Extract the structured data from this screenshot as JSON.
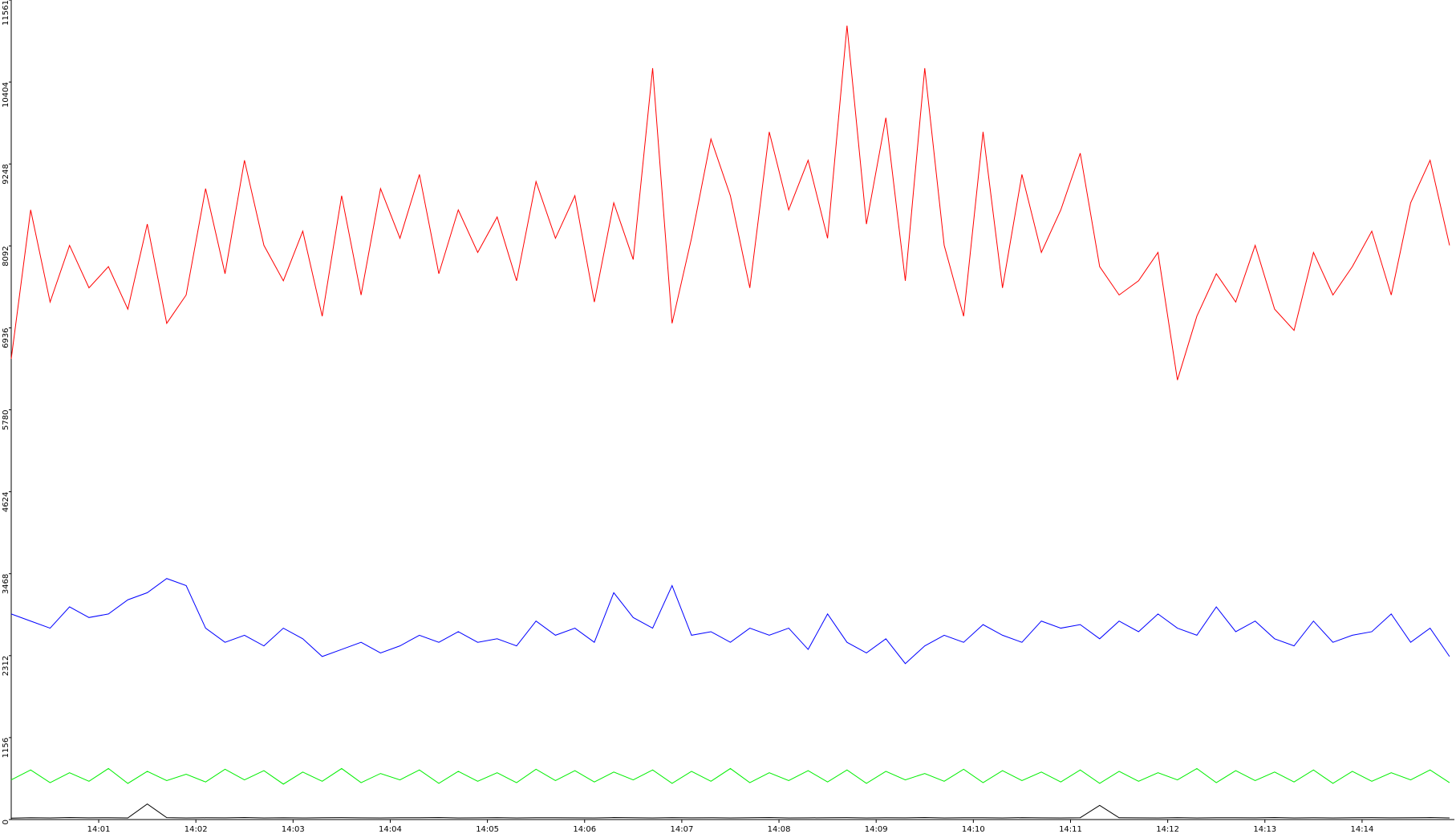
{
  "chart_data": {
    "type": "line",
    "x": [
      0.1,
      0.3,
      0.5,
      0.7,
      0.9,
      1.1,
      1.3,
      1.5,
      1.7,
      1.9,
      2.1,
      2.3,
      2.5,
      2.7,
      2.9,
      3.1,
      3.3,
      3.5,
      3.7,
      3.9,
      4.1,
      4.3,
      4.5,
      4.7,
      4.9,
      5.1,
      5.3,
      5.5,
      5.7,
      5.9,
      6.1,
      6.3,
      6.5,
      6.7,
      6.9,
      7.1,
      7.3,
      7.5,
      7.7,
      7.9,
      8.1,
      8.3,
      8.5,
      8.7,
      8.9,
      9.1,
      9.3,
      9.5,
      9.7,
      9.9,
      10.1,
      10.3,
      10.5,
      10.7,
      10.9,
      11.1,
      11.3,
      11.5,
      11.7,
      11.9,
      12.1,
      12.3,
      12.5,
      12.7,
      12.9,
      13.1,
      13.3,
      13.5,
      13.7,
      13.9,
      14.1,
      14.3,
      14.5,
      14.7,
      14.9
    ],
    "series": [
      {
        "color": "#ff0000",
        "values": [
          6500,
          8600,
          7300,
          8100,
          7500,
          7800,
          7200,
          8400,
          7000,
          7400,
          8900,
          7700,
          9300,
          8100,
          7600,
          8300,
          7100,
          8800,
          7400,
          8900,
          8200,
          9100,
          7700,
          8600,
          8000,
          8500,
          7600,
          9000,
          8200,
          8800,
          7300,
          8700,
          7900,
          10600,
          7000,
          8200,
          9600,
          8800,
          7500,
          9700,
          8600,
          9300,
          8200,
          11200,
          8400,
          9900,
          7600,
          10600,
          8100,
          7100,
          9700,
          7500,
          9100,
          8000,
          8600,
          9400,
          7800,
          7400,
          7600,
          8000,
          6200,
          7100,
          7700,
          7300,
          8100,
          7200,
          6900,
          8000,
          7400,
          7800,
          8300,
          7400,
          8700,
          9300,
          8100
        ]
      },
      {
        "color": "#0000ff",
        "values": [
          2900,
          2800,
          2700,
          3000,
          2850,
          2900,
          3100,
          3200,
          3400,
          3300,
          2700,
          2500,
          2600,
          2450,
          2700,
          2550,
          2300,
          2400,
          2500,
          2350,
          2450,
          2600,
          2500,
          2650,
          2500,
          2550,
          2450,
          2800,
          2600,
          2700,
          2500,
          3200,
          2850,
          2700,
          3300,
          2600,
          2650,
          2500,
          2700,
          2600,
          2700,
          2400,
          2900,
          2500,
          2350,
          2550,
          2200,
          2450,
          2600,
          2500,
          2750,
          2600,
          2500,
          2800,
          2700,
          2750,
          2550,
          2800,
          2650,
          2900,
          2700,
          2600,
          3000,
          2650,
          2800,
          2550,
          2450,
          2800,
          2500,
          2600,
          2650,
          2900,
          2500,
          2700,
          2300
        ]
      },
      {
        "color": "#00ee00",
        "values": [
          560,
          700,
          520,
          660,
          540,
          720,
          510,
          680,
          550,
          640,
          530,
          710,
          560,
          690,
          500,
          670,
          540,
          720,
          520,
          650,
          560,
          700,
          510,
          680,
          540,
          660,
          520,
          710,
          550,
          690,
          530,
          670,
          560,
          700,
          510,
          680,
          540,
          720,
          520,
          660,
          550,
          690,
          530,
          700,
          510,
          680,
          560,
          650,
          540,
          710,
          520,
          690,
          550,
          670,
          530,
          700,
          510,
          680,
          540,
          660,
          560,
          720,
          520,
          690,
          550,
          670,
          530,
          700,
          510,
          680,
          540,
          660,
          560,
          700,
          520
        ]
      },
      {
        "color": "#000000",
        "values": [
          20,
          25,
          22,
          28,
          24,
          26,
          23,
          220,
          27,
          22,
          25,
          24,
          28,
          23,
          26,
          22,
          25,
          27,
          24,
          23,
          26,
          25,
          28,
          22,
          24,
          27,
          23,
          25,
          26,
          24,
          22,
          28,
          25,
          23,
          27,
          24,
          26,
          22,
          25,
          28,
          23,
          24,
          26,
          27,
          22,
          25,
          24,
          28,
          23,
          26,
          25,
          22,
          27,
          24,
          23,
          26,
          200,
          25,
          24,
          22,
          27,
          23,
          26,
          25,
          24,
          28,
          22,
          25,
          23,
          26,
          27,
          24,
          25,
          28,
          23
        ]
      }
    ],
    "xlim": [
      0.1,
      14.95
    ],
    "xticks": [
      {
        "value": 1,
        "label": "14:01"
      },
      {
        "value": 2,
        "label": "14:02"
      },
      {
        "value": 3,
        "label": "14:03"
      },
      {
        "value": 4,
        "label": "14:04"
      },
      {
        "value": 5,
        "label": "14:05"
      },
      {
        "value": 6,
        "label": "14:06"
      },
      {
        "value": 7,
        "label": "14:07"
      },
      {
        "value": 8,
        "label": "14:08"
      },
      {
        "value": 9,
        "label": "14:09"
      },
      {
        "value": 10,
        "label": "14:10"
      },
      {
        "value": 11,
        "label": "14:11"
      },
      {
        "value": 12,
        "label": "14:12"
      },
      {
        "value": 13,
        "label": "14:13"
      },
      {
        "value": 14,
        "label": "14:14"
      }
    ],
    "ylim": [
      0,
      11561
    ],
    "yticks": [
      0,
      1156,
      2312,
      3468,
      4624,
      5780,
      6936,
      8092,
      9248,
      10404,
      11561
    ]
  }
}
